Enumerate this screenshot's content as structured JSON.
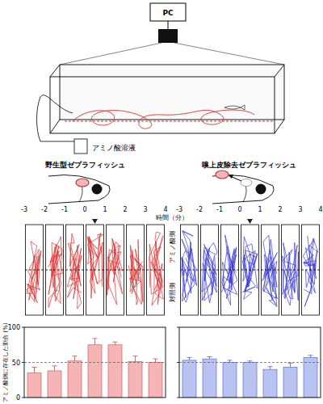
{
  "apparatus": {
    "computer_label": "PC",
    "solution_label": "アミノ酸溶液"
  },
  "fish": [
    {
      "label": "野生型ゼブラフィッシュ"
    },
    {
      "label": "嗅上皮除去ゼブラフィッシュ"
    }
  ],
  "trajectories": {
    "time_label": "時間（分）",
    "time_ticks": [
      -3,
      -2,
      -1,
      0,
      1,
      2,
      3,
      4
    ],
    "stimulus_time": 0,
    "side_labels": [
      "アミノ酸側",
      "対照側"
    ],
    "colors": [
      "#e03030",
      "#3a3ad8"
    ]
  },
  "chart_data": [
    {
      "type": "bar",
      "ylabel": "アミノ酸側に存在した割合 (%)",
      "categories": [
        null,
        null,
        null,
        null,
        null,
        null,
        null
      ],
      "values": [
        35,
        38,
        52,
        75,
        75,
        51,
        50
      ],
      "errors": [
        8,
        7,
        7,
        9,
        4,
        8,
        5
      ],
      "color": "#f5b5b5",
      "ylim": [
        0,
        100
      ],
      "yticks": [
        0,
        50,
        100
      ],
      "reference_line": 50,
      "tick_labels": "y"
    },
    {
      "type": "bar",
      "categories": [
        null,
        null,
        null,
        null,
        null,
        null,
        null
      ],
      "values": [
        53,
        55,
        50,
        50,
        40,
        43,
        57
      ],
      "errors": [
        4,
        3,
        3,
        2,
        4,
        6,
        3
      ],
      "color": "#b9c3f2",
      "ylim": [
        0,
        100
      ],
      "yticks": [
        0,
        50,
        100
      ],
      "reference_line": 50,
      "tick_labels": false
    }
  ]
}
